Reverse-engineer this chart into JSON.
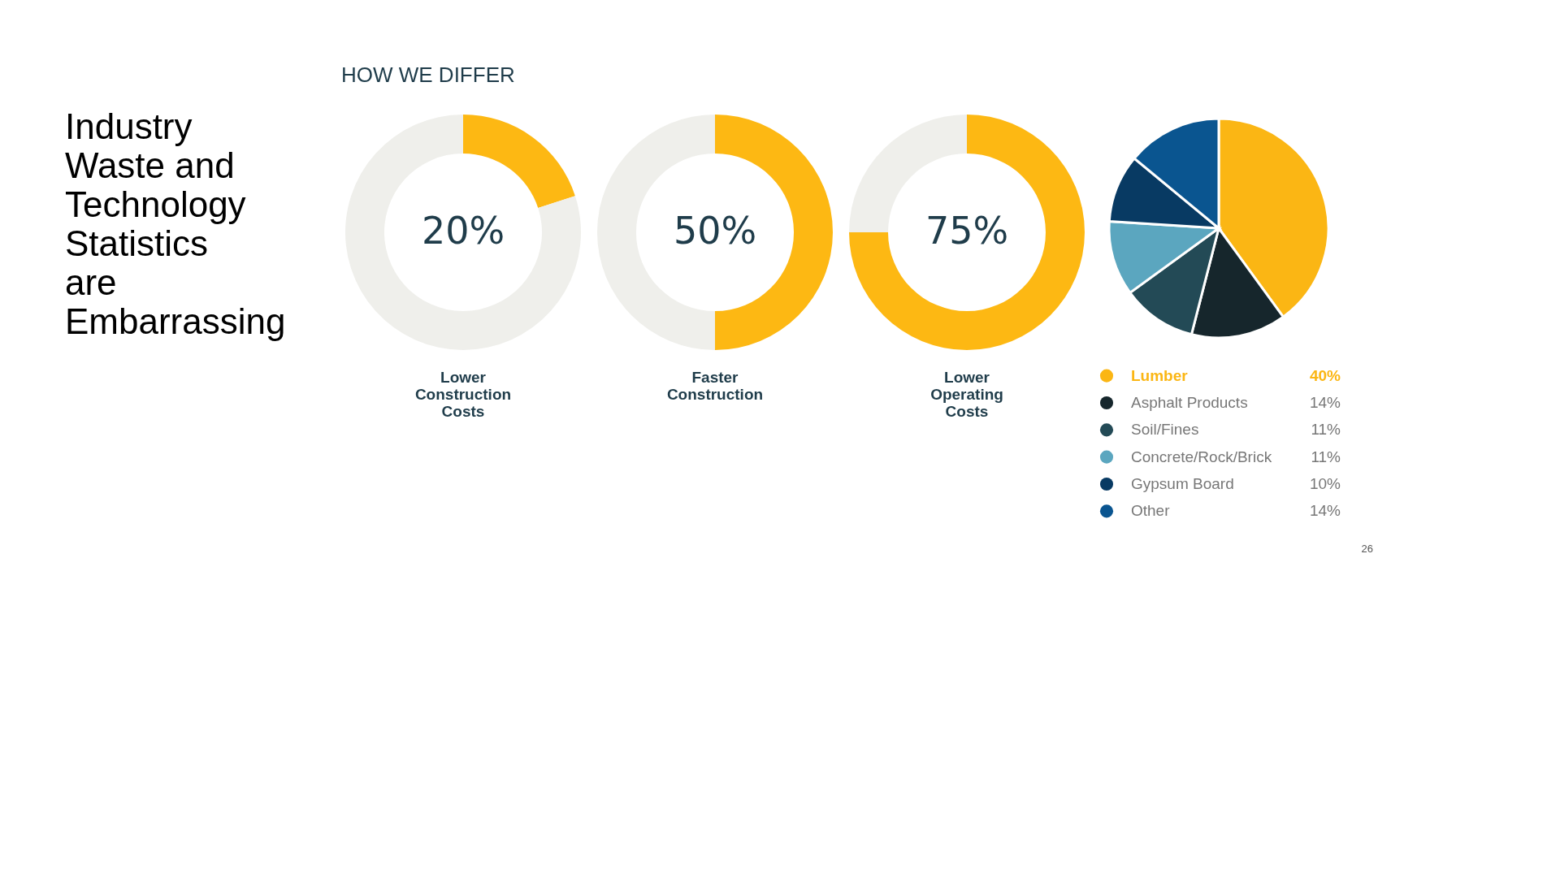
{
  "chart_data": [
    {
      "type": "donut",
      "title": "Industry Waste and Technology Statistics are Embarrassing",
      "subtitle": "HOW WE DIFFER",
      "xlabel": "Lower Construction Costs",
      "categories": [
        null,
        null
      ],
      "values": [
        20,
        80
      ],
      "colors": [
        "#fdb813",
        "#efefeb"
      ],
      "value_labels": [
        "20%",
        null
      ]
    },
    {
      "type": "donut",
      "xlabel": "Faster Construction",
      "categories": [
        null,
        null
      ],
      "values": [
        50,
        50
      ],
      "colors": [
        "#fdb813",
        "#efefeb"
      ],
      "value_labels": [
        "50%",
        null
      ]
    },
    {
      "type": "donut",
      "xlabel": "Lower Operating Costs",
      "categories": [
        null,
        null
      ],
      "values": [
        75,
        25
      ],
      "colors": [
        "#fdb813",
        "#efefeb"
      ],
      "value_labels": [
        "75%",
        null
      ]
    },
    {
      "type": "pie",
      "categories": [
        "Lumber",
        "Asphalt Products",
        "Soil/Fines",
        "Concrete/Rock/Brick",
        "Gypsum Board",
        "Other"
      ],
      "values": [
        40,
        14,
        11,
        11,
        10,
        14
      ],
      "colors": [
        "#fbb614",
        "#16262c",
        "#234a56",
        "#5ba6bf",
        "#083a63",
        "#0a5590"
      ],
      "value_labels": [
        "40%",
        "14%",
        "11%",
        "11%",
        "10%",
        "14%"
      ],
      "legend": "bottom",
      "annotations": [
        "26"
      ]
    }
  ]
}
